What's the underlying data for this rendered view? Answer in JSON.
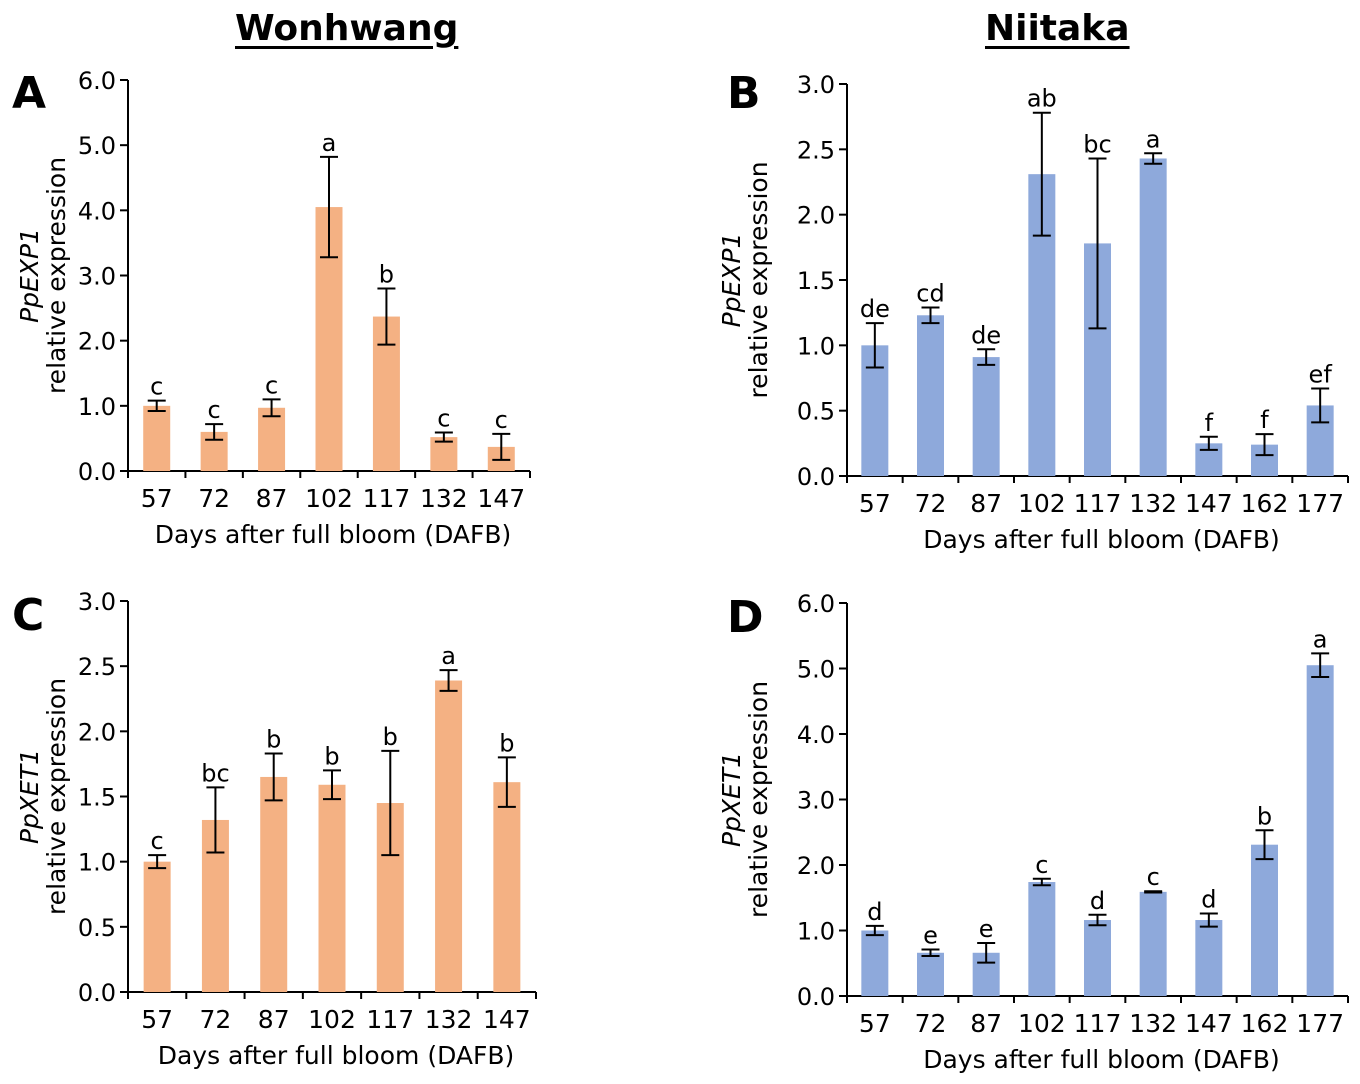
{
  "titles": {
    "left": "Wonhwang",
    "right": "Niitaka"
  },
  "colors": {
    "orange": "#F4B183",
    "blue": "#8EA9DB",
    "axis": "#000000"
  },
  "chart_data": [
    {
      "type": "bar",
      "panel": "A",
      "gene": "PpEXP1",
      "ylabel": "relative expression",
      "xlabel": "Days after full bloom (DAFB)",
      "ylim": [
        0,
        6
      ],
      "yticks": [
        "0.0",
        "1.0",
        "2.0",
        "3.0",
        "4.0",
        "5.0",
        "6.0"
      ],
      "categories": [
        "57",
        "72",
        "87",
        "102",
        "117",
        "132",
        "147"
      ],
      "values": [
        1.0,
        0.6,
        0.97,
        4.05,
        2.37,
        0.52,
        0.37
      ],
      "errors": [
        0.08,
        0.12,
        0.13,
        0.77,
        0.43,
        0.07,
        0.2
      ],
      "letters": [
        "c",
        "c",
        "c",
        "a",
        "b",
        "c",
        "c"
      ],
      "color": "orange"
    },
    {
      "type": "bar",
      "panel": "B",
      "gene": "PpEXP1",
      "ylabel": "relative expression",
      "xlabel": "Days after full bloom (DAFB)",
      "ylim": [
        0,
        3
      ],
      "yticks": [
        "0.0",
        "0.5",
        "1.0",
        "1.5",
        "2.0",
        "2.5",
        "3.0"
      ],
      "categories": [
        "57",
        "72",
        "87",
        "102",
        "117",
        "132",
        "147",
        "162",
        "177"
      ],
      "values": [
        1.0,
        1.23,
        0.91,
        2.31,
        1.78,
        2.43,
        0.25,
        0.24,
        0.54
      ],
      "errors": [
        0.17,
        0.06,
        0.06,
        0.47,
        0.65,
        0.04,
        0.05,
        0.08,
        0.13
      ],
      "letters": [
        "de",
        "cd",
        "de",
        "ab",
        "bc",
        "a",
        "f",
        "f",
        "ef"
      ],
      "color": "blue"
    },
    {
      "type": "bar",
      "panel": "C",
      "gene": "PpXET1",
      "ylabel": "relative expression",
      "xlabel": "Days after full bloom (DAFB)",
      "ylim": [
        0,
        3
      ],
      "yticks": [
        "0.0",
        "0.5",
        "1.0",
        "1.5",
        "2.0",
        "2.5",
        "3.0"
      ],
      "categories": [
        "57",
        "72",
        "87",
        "102",
        "117",
        "132",
        "147"
      ],
      "values": [
        1.0,
        1.32,
        1.65,
        1.59,
        1.45,
        2.39,
        1.61
      ],
      "errors": [
        0.05,
        0.25,
        0.18,
        0.11,
        0.4,
        0.08,
        0.19
      ],
      "letters": [
        "c",
        "bc",
        "b",
        "b",
        "b",
        "a",
        "b"
      ],
      "color": "orange"
    },
    {
      "type": "bar",
      "panel": "D",
      "gene": "PpXET1",
      "ylabel": "relative expression",
      "xlabel": "Days after full bloom (DAFB)",
      "ylim": [
        0,
        6
      ],
      "yticks": [
        "0.0",
        "1.0",
        "2.0",
        "3.0",
        "4.0",
        "5.0",
        "6.0"
      ],
      "categories": [
        "57",
        "72",
        "87",
        "102",
        "117",
        "132",
        "147",
        "162",
        "177"
      ],
      "values": [
        1.0,
        0.66,
        0.66,
        1.74,
        1.16,
        1.59,
        1.16,
        2.31,
        5.05
      ],
      "errors": [
        0.07,
        0.05,
        0.15,
        0.05,
        0.08,
        0.01,
        0.1,
        0.22,
        0.18
      ],
      "letters": [
        "d",
        "e",
        "e",
        "c",
        "d",
        "c",
        "d",
        "b",
        "a"
      ],
      "color": "blue"
    }
  ]
}
